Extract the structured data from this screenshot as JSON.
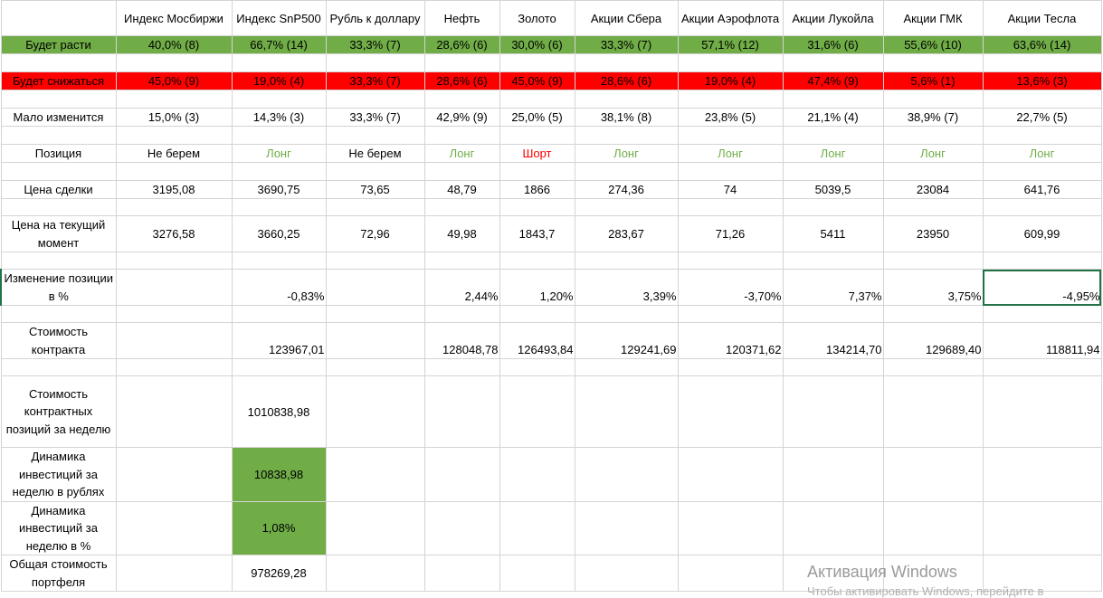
{
  "headers": [
    "",
    "Индекс Мосбиржи",
    "Индекс SnP500",
    "Рубль к доллару",
    "Нефть",
    "Золото",
    "Акции Сбера",
    "Акции Аэрофлота",
    "Акции  Лукойла",
    "Акции ГМК",
    "Акции Тесла"
  ],
  "rise": {
    "label": "Будет расти",
    "values": [
      "40,0% (8)",
      "66,7% (14)",
      "33,3% (7)",
      "28,6% (6)",
      "30,0% (6)",
      "33,3% (7)",
      "57,1% (12)",
      "31,6% (6)",
      "55,6% (10)",
      "63,6% (14)"
    ]
  },
  "fall": {
    "label": "Будет снижаться",
    "values": [
      "45,0% (9)",
      "19,0% (4)",
      "33,3% (7)",
      "28,6% (6)",
      "45,0% (9)",
      "28,6% (6)",
      "19,0% (4)",
      "47,4% (9)",
      "5,6% (1)",
      "13,6% (3)"
    ]
  },
  "flat": {
    "label": "Мало изменится",
    "values": [
      "15,0% (3)",
      "14,3% (3)",
      "33,3% (7)",
      "42,9% (9)",
      "25,0% (5)",
      "38,1% (8)",
      "23,8% (5)",
      "21,1% (4)",
      "38,9% (7)",
      "22,7% (5)"
    ]
  },
  "position": {
    "label": "Позиция",
    "values": [
      "Не берем",
      "Лонг",
      "Не берем",
      "Лонг",
      "Шорт",
      "Лонг",
      "Лонг",
      "Лонг",
      "Лонг",
      "Лонг"
    ]
  },
  "deal_price": {
    "label": "Цена сделки",
    "values": [
      "3195,08",
      "3690,75",
      "73,65",
      "48,79",
      "1866",
      "274,36",
      "74",
      "5039,5",
      "23084",
      "641,76"
    ]
  },
  "current_price": {
    "label": "Цена на текущий момент",
    "values": [
      "3276,58",
      "3660,25",
      "72,96",
      "49,98",
      "1843,7",
      "283,67",
      "71,26",
      "5411",
      "23950",
      "609,99"
    ]
  },
  "change": {
    "label": "Изменение позиции в %",
    "values": [
      "",
      "-0,83%",
      "",
      "2,44%",
      "1,20%",
      "3,39%",
      "-3,70%",
      "7,37%",
      "3,75%",
      "-4,95%"
    ]
  },
  "contract_value": {
    "label": "Стоимость контракта",
    "values": [
      "",
      "123967,01",
      "",
      "128048,78",
      "126493,84",
      "129241,69",
      "120371,62",
      "134214,70",
      "129689,40",
      "118811,94"
    ]
  },
  "weekly_positions": {
    "label": "Стоимость контрактных позиций за неделю",
    "value": "1010838,98"
  },
  "dynamics_rub": {
    "label": "Динамика инвестиций за неделю в рублях",
    "value": "10838,98"
  },
  "dynamics_pct": {
    "label": "Динамика инвестиций за неделю в %",
    "value": "1,08%"
  },
  "portfolio": {
    "label": "Общая стоимость портфеля",
    "value": "978269,28"
  },
  "watermark": {
    "title": "Активация Windows",
    "subtitle": "Чтобы активировать Windows, перейдите в"
  },
  "colors": {
    "green": "#70ad47",
    "red": "#ff0000",
    "selection": "#217346"
  }
}
